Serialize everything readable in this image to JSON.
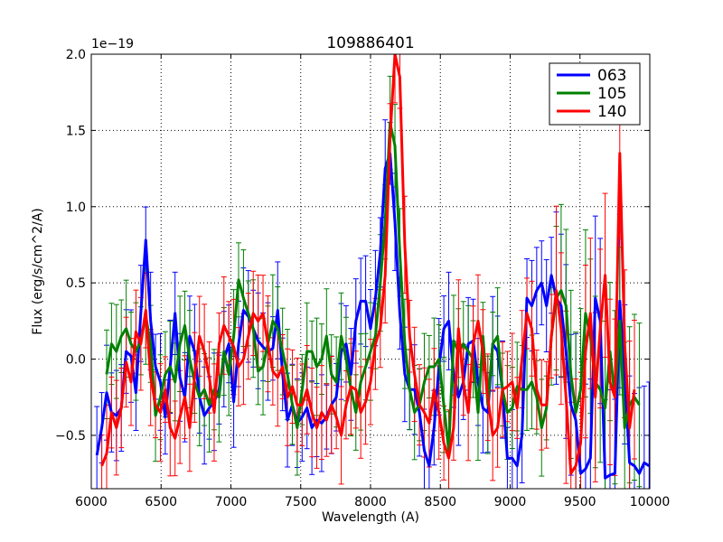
{
  "chart_data": {
    "type": "line",
    "title": "109886401",
    "xlabel": "Wavelength (A)",
    "ylabel": "Flux (erg/s/cm^2/A)",
    "offset_text": "1e−19",
    "xlim": [
      6000,
      10000
    ],
    "ylim": [
      -0.85,
      2.0
    ],
    "grid": true,
    "legend_position": "top-right",
    "x_ticks": [
      6000,
      6500,
      7000,
      7500,
      8000,
      8500,
      9000,
      9500,
      10000
    ],
    "x_tick_labels": [
      "6000",
      "6500",
      "7000",
      "7500",
      "8000",
      "8500",
      "9000",
      "9500",
      "10000"
    ],
    "y_ticks": [
      -0.5,
      0.0,
      0.5,
      1.0,
      1.5,
      2.0
    ],
    "y_tick_labels": [
      "−0.5",
      "0.0",
      "0.5",
      "1.0",
      "1.5",
      "2.0"
    ],
    "series": [
      {
        "name": "063",
        "color": "#0000ff",
        "x": [
          6040,
          6075,
          6110,
          6145,
          6180,
          6215,
          6250,
          6285,
          6320,
          6355,
          6390,
          6425,
          6460,
          6495,
          6530,
          6565,
          6600,
          6635,
          6670,
          6705,
          6740,
          6775,
          6810,
          6845,
          6880,
          6915,
          6950,
          6985,
          7020,
          7055,
          7090,
          7125,
          7160,
          7195,
          7230,
          7265,
          7300,
          7335,
          7370,
          7405,
          7440,
          7475,
          7510,
          7545,
          7580,
          7615,
          7650,
          7685,
          7720,
          7755,
          7790,
          7825,
          7860,
          7895,
          7930,
          7965,
          8000,
          8035,
          8070,
          8105,
          8140,
          8175,
          8210,
          8245,
          8280,
          8315,
          8350,
          8385,
          8420,
          8455,
          8490,
          8525,
          8560,
          8595,
          8630,
          8665,
          8700,
          8735,
          8770,
          8805,
          8840,
          8875,
          8910,
          8945,
          8980,
          9015,
          9050,
          9085,
          9120,
          9155,
          9190,
          9225,
          9260,
          9295,
          9330,
          9365,
          9400,
          9435,
          9470,
          9505,
          9540,
          9575,
          9610,
          9645,
          9680,
          9715,
          9750,
          9785,
          9820,
          9855,
          9890,
          9925,
          9960,
          9995
        ],
        "y": [
          -0.63,
          -0.45,
          -0.22,
          -0.35,
          -0.37,
          -0.32,
          0.05,
          0.02,
          -0.22,
          0.3,
          0.78,
          0.25,
          -0.05,
          -0.15,
          -0.38,
          -0.05,
          0.3,
          -0.12,
          -0.25,
          0.15,
          0.05,
          -0.25,
          -0.37,
          -0.32,
          -0.28,
          -0.2,
          0.0,
          0.1,
          -0.28,
          0.1,
          0.32,
          0.28,
          0.2,
          0.12,
          0.08,
          0.05,
          0.07,
          0.32,
          -0.1,
          -0.4,
          -0.3,
          -0.42,
          -0.38,
          -0.32,
          -0.45,
          -0.4,
          -0.42,
          -0.38,
          -0.3,
          -0.25,
          0.05,
          0.1,
          -0.1,
          0.25,
          0.38,
          0.38,
          0.2,
          0.4,
          0.7,
          1.25,
          1.35,
          0.9,
          0.3,
          -0.1,
          -0.2,
          -0.2,
          -0.35,
          -0.6,
          -0.7,
          -0.45,
          -0.05,
          0.2,
          0.25,
          -0.1,
          -0.25,
          -0.15,
          0.1,
          0.12,
          -0.15,
          -0.32,
          -0.35,
          0.1,
          0.05,
          -0.2,
          -0.65,
          -0.65,
          -0.7,
          -0.5,
          0.4,
          0.35,
          0.45,
          0.5,
          0.35,
          0.55,
          0.4,
          0.35,
          0.05,
          -0.3,
          -0.4,
          -0.75,
          -0.72,
          -0.65,
          0.4,
          0.25,
          -0.78,
          -0.76,
          -0.75,
          0.38,
          -0.1,
          -0.68,
          -0.7,
          -0.75,
          -0.68,
          -0.7
        ]
      },
      {
        "name": "105",
        "color": "#008000",
        "x": [
          6110,
          6145,
          6180,
          6215,
          6250,
          6285,
          6320,
          6355,
          6390,
          6425,
          6460,
          6495,
          6530,
          6565,
          6600,
          6635,
          6670,
          6705,
          6740,
          6775,
          6810,
          6845,
          6880,
          6915,
          6950,
          6985,
          7020,
          7055,
          7090,
          7125,
          7160,
          7195,
          7230,
          7265,
          7300,
          7335,
          7370,
          7405,
          7440,
          7475,
          7510,
          7545,
          7580,
          7615,
          7650,
          7685,
          7720,
          7755,
          7790,
          7825,
          7860,
          7895,
          7930,
          7965,
          8000,
          8035,
          8070,
          8105,
          8140,
          8175,
          8210,
          8245,
          8280,
          8315,
          8350,
          8385,
          8420,
          8455,
          8490,
          8525,
          8560,
          8595,
          8630,
          8665,
          8700,
          8735,
          8770,
          8805,
          8840,
          8875,
          8910,
          8945,
          8980,
          9015,
          9050,
          9085,
          9120,
          9155,
          9190,
          9225,
          9260,
          9295,
          9330,
          9365,
          9400,
          9435,
          9470,
          9505,
          9540,
          9575,
          9610,
          9645,
          9680,
          9715,
          9750,
          9785,
          9820,
          9855,
          9890,
          9925
        ],
        "y": [
          -0.1,
          0.1,
          0.05,
          0.15,
          0.2,
          0.1,
          0.05,
          0.12,
          0.28,
          0.1,
          -0.37,
          -0.25,
          -0.1,
          -0.05,
          -0.15,
          0.1,
          0.22,
          0.0,
          -0.15,
          -0.25,
          -0.2,
          -0.3,
          -0.2,
          -0.25,
          0.05,
          -0.1,
          0.15,
          0.52,
          0.4,
          0.3,
          0.2,
          -0.08,
          -0.05,
          0.1,
          0.25,
          0.2,
          0.05,
          -0.1,
          -0.3,
          -0.45,
          -0.2,
          0.05,
          0.05,
          -0.05,
          0.0,
          0.15,
          -0.1,
          -0.15,
          0.15,
          0.0,
          -0.2,
          -0.35,
          -0.15,
          -0.05,
          0.05,
          0.15,
          0.5,
          0.9,
          1.55,
          1.4,
          0.7,
          0.1,
          -0.2,
          -0.35,
          -0.3,
          -0.15,
          -0.05,
          -0.05,
          0.0,
          -0.3,
          -0.6,
          0.12,
          0.05,
          0.1,
          0.05,
          0.0,
          -0.35,
          0.15,
          -0.3,
          0.1,
          0.15,
          -0.2,
          -0.35,
          -0.32,
          -0.18,
          -0.2,
          -0.2,
          -0.15,
          -0.25,
          -0.45,
          -0.32,
          0.15,
          0.4,
          0.45,
          0.35,
          -0.1,
          -0.35,
          -0.2,
          0.3,
          0.15,
          -0.15,
          -0.2,
          -0.32,
          0.05,
          -0.25,
          0.25,
          -0.45,
          -0.3,
          -0.25,
          -0.3
        ]
      },
      {
        "name": "140",
        "color": "#ff0000",
        "x": [
          6075,
          6110,
          6145,
          6180,
          6215,
          6250,
          6285,
          6320,
          6355,
          6390,
          6425,
          6460,
          6495,
          6530,
          6565,
          6600,
          6635,
          6670,
          6705,
          6740,
          6775,
          6810,
          6845,
          6880,
          6915,
          6950,
          6985,
          7020,
          7055,
          7090,
          7125,
          7160,
          7195,
          7230,
          7265,
          7300,
          7335,
          7370,
          7405,
          7440,
          7475,
          7510,
          7545,
          7580,
          7615,
          7650,
          7685,
          7720,
          7755,
          7790,
          7825,
          7860,
          7895,
          7930,
          7965,
          8000,
          8035,
          8070,
          8105,
          8140,
          8175,
          8210,
          8245,
          8280,
          8315,
          8350,
          8385,
          8420,
          8455,
          8490,
          8525,
          8560,
          8595,
          8630,
          8665,
          8700,
          8735,
          8770,
          8805,
          8840,
          8875,
          8910,
          8945,
          8980,
          9015,
          9050,
          9085,
          9120,
          9155,
          9190,
          9225,
          9260,
          9295,
          9330,
          9365,
          9400,
          9435,
          9470,
          9505,
          9540,
          9575,
          9610,
          9645,
          9680,
          9715,
          9750,
          9785,
          9820,
          9855,
          9890
        ],
        "y": [
          -0.7,
          -0.62,
          -0.35,
          -0.45,
          -0.32,
          -0.02,
          -0.15,
          0.18,
          0.1,
          0.32,
          -0.12,
          -0.3,
          -0.35,
          -0.2,
          -0.45,
          -0.52,
          -0.38,
          -0.25,
          -0.45,
          -0.12,
          0.15,
          0.05,
          -0.12,
          -0.35,
          0.1,
          0.22,
          0.15,
          0.08,
          -0.05,
          0.0,
          0.15,
          0.3,
          0.25,
          0.3,
          0.1,
          -0.08,
          -0.12,
          -0.05,
          -0.25,
          -0.18,
          -0.3,
          -0.3,
          -0.2,
          -0.35,
          -0.45,
          -0.35,
          -0.4,
          -0.3,
          -0.38,
          -0.5,
          -0.3,
          -0.18,
          -0.2,
          -0.35,
          -0.28,
          -0.15,
          0.1,
          0.2,
          0.55,
          1.45,
          2.0,
          1.85,
          0.75,
          0.15,
          -0.1,
          -0.3,
          -0.35,
          -0.42,
          -0.2,
          -0.35,
          -0.55,
          -0.65,
          -0.45,
          0.2,
          -0.15,
          -0.35,
          0.1,
          0.25,
          0.05,
          -0.25,
          -0.5,
          -0.45,
          -0.2,
          -0.18,
          -0.15,
          -0.32,
          0.0,
          0.3,
          0.2,
          -0.2,
          -0.3,
          -0.3,
          0.15,
          0.45,
          0.2,
          -0.25,
          -0.75,
          -0.7,
          -0.55,
          0.05,
          0.3,
          -0.25,
          0.2,
          0.55,
          -0.15,
          -0.25,
          1.35,
          0.1,
          -0.45,
          -0.2
        ]
      }
    ]
  }
}
